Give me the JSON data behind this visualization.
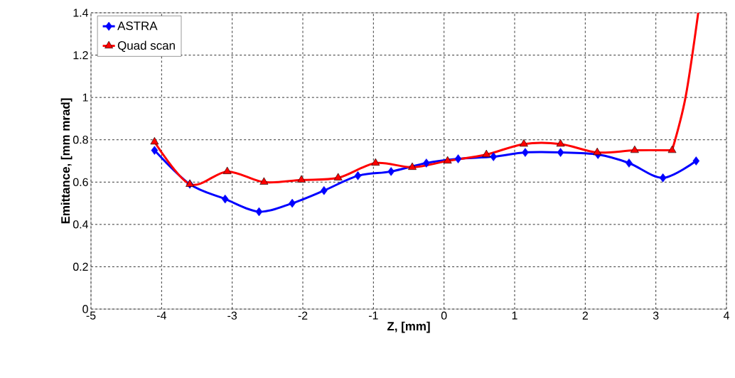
{
  "chart_data": {
    "type": "line",
    "xlabel": "Z, [mm]",
    "ylabel": "Emittance, [mm mrad]",
    "xlim": [
      -5,
      4
    ],
    "xticks": [
      -5,
      -4,
      -3,
      -2,
      -1,
      0,
      1,
      2,
      3,
      4
    ],
    "ylim": [
      0,
      1.4
    ],
    "yticks": [
      0,
      0.2,
      0.4,
      0.6,
      0.8,
      1,
      1.2,
      1.4
    ],
    "grid": true,
    "legend": "top left",
    "line_style": "solid",
    "series": [
      {
        "name": "ASTRA",
        "color": "#0000ff",
        "marker": "diamond",
        "x": [
          -4.1,
          -3.6,
          -3.1,
          -2.62,
          -2.15,
          -1.7,
          -1.22,
          -0.75,
          -0.25,
          0.2,
          0.7,
          1.15,
          1.65,
          2.18,
          2.62,
          3.1,
          3.57
        ],
        "values": [
          0.75,
          0.59,
          0.52,
          0.46,
          0.5,
          0.56,
          0.63,
          0.65,
          0.69,
          0.71,
          0.72,
          0.74,
          0.74,
          0.73,
          0.69,
          0.62,
          0.7
        ]
      },
      {
        "name": "Quad scan",
        "color": "#ff0000",
        "marker": "triangle",
        "x": [
          -4.1,
          -3.6,
          -3.07,
          -2.55,
          -2.02,
          -1.5,
          -0.97,
          -0.45,
          0.05,
          0.6,
          1.13,
          1.65,
          2.17,
          2.7,
          3.23
        ],
        "values": [
          0.79,
          0.59,
          0.65,
          0.6,
          0.61,
          0.62,
          0.69,
          0.67,
          0.7,
          0.73,
          0.78,
          0.78,
          0.74,
          0.75,
          0.75
        ]
      },
      {
        "color": "#ff0000",
        "marker": "none",
        "x": [
          3.23,
          3.42,
          3.6
        ],
        "values": [
          0.75,
          1.0,
          1.4
        ]
      }
    ]
  }
}
